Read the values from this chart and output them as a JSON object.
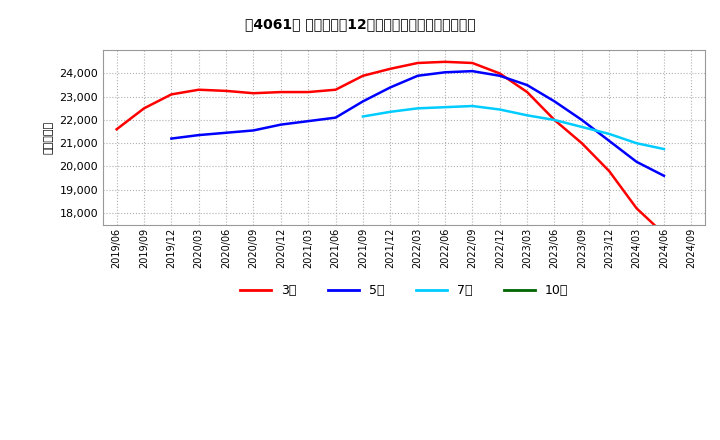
{
  "title": "［4061］ 当期純利益12か月移動合計の平均値の推移",
  "ylabel": "（百万円）",
  "ylim": [
    17500,
    25000
  ],
  "yticks": [
    18000,
    19000,
    20000,
    21000,
    22000,
    23000,
    24000
  ],
  "background_color": "#ffffff",
  "plot_bg_color": "#ffffff",
  "grid_color": "#b0b0b0",
  "series": {
    "3年": {
      "color": "#ff0000",
      "points": [
        [
          "2019/06",
          21600
        ],
        [
          "2019/09",
          22500
        ],
        [
          "2019/12",
          23100
        ],
        [
          "2020/03",
          23300
        ],
        [
          "2020/06",
          23250
        ],
        [
          "2020/09",
          23150
        ],
        [
          "2020/12",
          23200
        ],
        [
          "2021/03",
          23200
        ],
        [
          "2021/06",
          23300
        ],
        [
          "2021/09",
          23900
        ],
        [
          "2021/12",
          24200
        ],
        [
          "2022/03",
          24450
        ],
        [
          "2022/06",
          24500
        ],
        [
          "2022/09",
          24450
        ],
        [
          "2022/12",
          24000
        ],
        [
          "2023/03",
          23200
        ],
        [
          "2023/06",
          22000
        ],
        [
          "2023/09",
          21000
        ],
        [
          "2023/12",
          19800
        ],
        [
          "2024/03",
          18200
        ],
        [
          "2024/06",
          17100
        ]
      ]
    },
    "5年": {
      "color": "#0000ff",
      "points": [
        [
          "2019/12",
          21200
        ],
        [
          "2020/03",
          21350
        ],
        [
          "2020/06",
          21450
        ],
        [
          "2020/09",
          21550
        ],
        [
          "2020/12",
          21800
        ],
        [
          "2021/03",
          21950
        ],
        [
          "2021/06",
          22100
        ],
        [
          "2021/09",
          22800
        ],
        [
          "2021/12",
          23400
        ],
        [
          "2022/03",
          23900
        ],
        [
          "2022/06",
          24050
        ],
        [
          "2022/09",
          24100
        ],
        [
          "2022/12",
          23900
        ],
        [
          "2023/03",
          23500
        ],
        [
          "2023/06",
          22800
        ],
        [
          "2023/09",
          22000
        ],
        [
          "2023/12",
          21100
        ],
        [
          "2024/03",
          20200
        ],
        [
          "2024/06",
          19600
        ]
      ]
    },
    "7年": {
      "color": "#00ccff",
      "points": [
        [
          "2021/09",
          22150
        ],
        [
          "2021/12",
          22350
        ],
        [
          "2022/03",
          22500
        ],
        [
          "2022/06",
          22550
        ],
        [
          "2022/09",
          22600
        ],
        [
          "2022/12",
          22450
        ],
        [
          "2023/03",
          22200
        ],
        [
          "2023/06",
          22000
        ],
        [
          "2023/09",
          21700
        ],
        [
          "2023/12",
          21400
        ],
        [
          "2024/03",
          21000
        ],
        [
          "2024/06",
          20750
        ]
      ]
    },
    "10年": {
      "color": "#006600",
      "points": []
    }
  },
  "xtick_labels": [
    "2019/06",
    "2019/09",
    "2019/12",
    "2020/03",
    "2020/06",
    "2020/09",
    "2020/12",
    "2021/03",
    "2021/06",
    "2021/09",
    "2021/12",
    "2022/03",
    "2022/06",
    "2022/09",
    "2022/12",
    "2023/03",
    "2023/06",
    "2023/09",
    "2023/12",
    "2024/03",
    "2024/06",
    "2024/09"
  ],
  "legend_labels": [
    "3年",
    "5年",
    "7年",
    "10年"
  ],
  "legend_colors": [
    "#ff0000",
    "#0000ff",
    "#00ccff",
    "#006600"
  ]
}
